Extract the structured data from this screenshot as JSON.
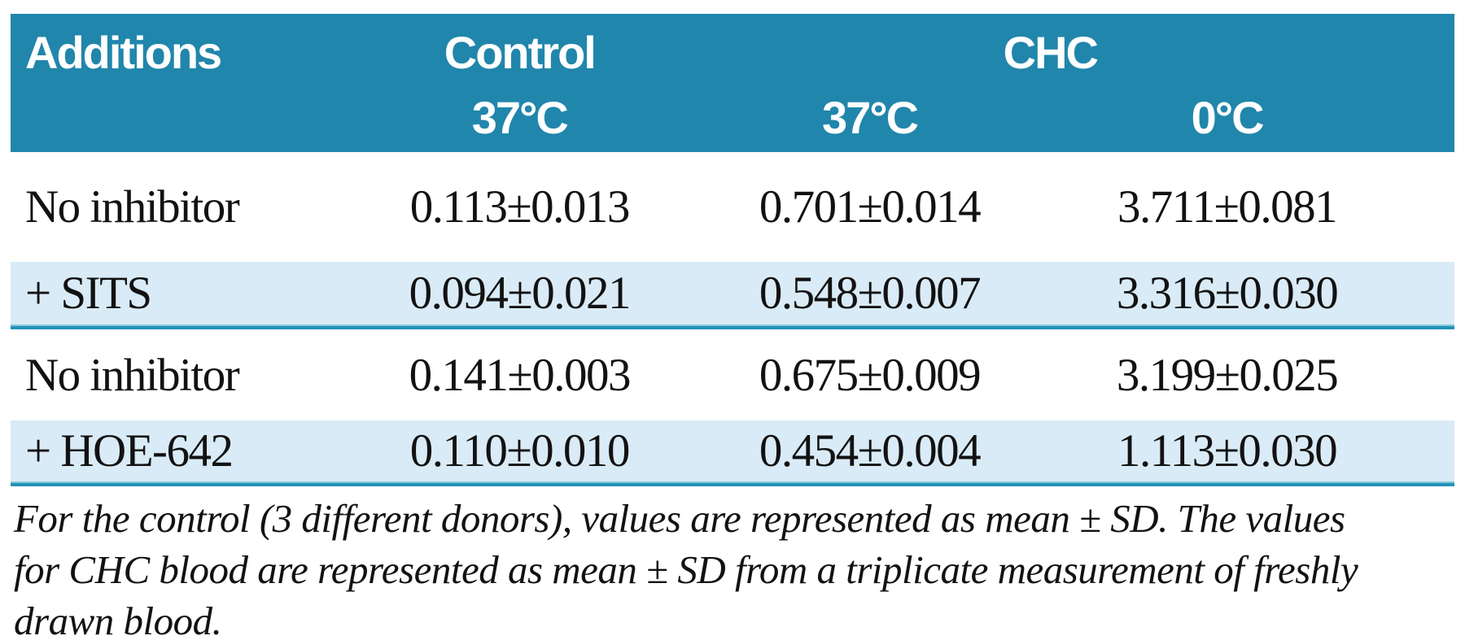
{
  "table": {
    "header": {
      "additions_label": "Additions",
      "control_group_label": "Control",
      "chc_group_label": "CHC",
      "control_temp": "37°C",
      "chc_temp_37": "37°C",
      "chc_temp_0": "0°C"
    },
    "rows": [
      {
        "addition": "No inhibitor",
        "control_37": "0.113±0.013",
        "chc_37": "0.701±0.014",
        "chc_0": "3.711±0.081"
      },
      {
        "addition": "+ SITS",
        "control_37": "0.094±0.021",
        "chc_37": "0.548±0.007",
        "chc_0": "3.316±0.030"
      },
      {
        "addition": "No inhibitor",
        "control_37": "0.141±0.003",
        "chc_37": "0.675±0.009",
        "chc_0": "3.199±0.025"
      },
      {
        "addition": "+ HOE-642",
        "control_37": "0.110±0.010",
        "chc_37": "0.454±0.004",
        "chc_0": "1.113±0.030"
      }
    ]
  },
  "footnote": {
    "lines": [
      "For the control (3 different donors), values are represented as mean ± SD. The values",
      "for CHC blood are represented as mean ± SD from a triplicate measurement of freshly",
      "drawn blood."
    ]
  },
  "colors": {
    "header_teal": "#2186ab",
    "stripe_blue": "#d9ebf6",
    "separator_teal": "#2391b7"
  },
  "chart_data": {
    "type": "table",
    "columns": [
      "Additions",
      "Control 37°C",
      "CHC 37°C",
      "CHC 0°C"
    ],
    "rows": [
      [
        "No inhibitor",
        "0.113±0.013",
        "0.701±0.014",
        "3.711±0.081"
      ],
      [
        "+ SITS",
        "0.094±0.021",
        "0.548±0.007",
        "3.316±0.030"
      ],
      [
        "No inhibitor",
        "0.141±0.003",
        "0.675±0.009",
        "3.199±0.025"
      ],
      [
        "+ HOE-642",
        "0.110±0.010",
        "0.454±0.004",
        "1.113±0.030"
      ]
    ]
  }
}
